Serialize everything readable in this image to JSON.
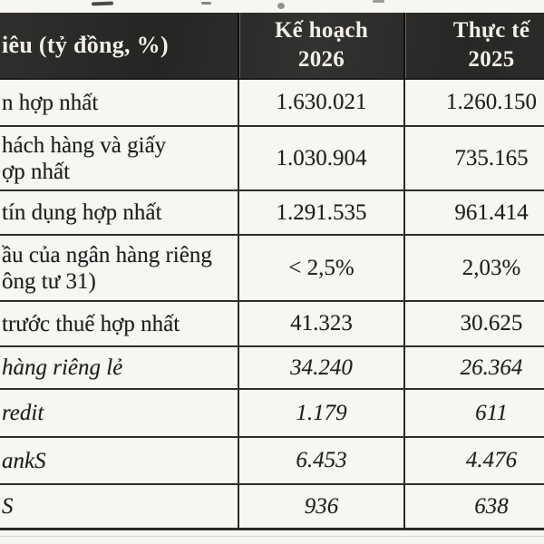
{
  "table": {
    "header": {
      "col1": "iêu (tỷ đồng, %)",
      "col2_line1": "Kế hoạch",
      "col2_line2": "2026",
      "col3_line1": "Thực tế",
      "col3_line2": "2025"
    },
    "rows": [
      {
        "label_lines": [
          "n hợp nhất"
        ],
        "plan_2026": "1.630.021",
        "actual_2025": "1.260.150"
      },
      {
        "label_lines": [
          "hách hàng và giấy",
          "ợp nhất"
        ],
        "plan_2026": "1.030.904",
        "actual_2025": "735.165"
      },
      {
        "label_lines": [
          "tín dụng hợp nhất"
        ],
        "plan_2026": "1.291.535",
        "actual_2025": "961.414"
      },
      {
        "label_lines": [
          "ầu của ngân hàng riêng",
          "ông tư 31)"
        ],
        "plan_2026": "< 2,5%",
        "actual_2025": "2,03%"
      },
      {
        "label_lines": [
          "trước thuế hợp nhất"
        ],
        "plan_2026": "41.323",
        "actual_2025": "30.625"
      },
      {
        "label_lines": [
          "hàng riêng lẻ"
        ],
        "plan_2026": "34.240",
        "actual_2025": "26.364"
      },
      {
        "label_lines": [
          "redit"
        ],
        "plan_2026": "1.179",
        "actual_2025": "611"
      },
      {
        "label_lines": [
          "ankS"
        ],
        "plan_2026": "6.453",
        "actual_2025": "4.476"
      },
      {
        "label_lines": [
          "S"
        ],
        "plan_2026": "936",
        "actual_2025": "638"
      }
    ],
    "colors": {
      "header_bg": "#2c2b29",
      "header_text": "#f1efeb",
      "body_text": "#1e1e1e",
      "border": "#2f2e2c",
      "paper": "#f7f6f3"
    }
  }
}
